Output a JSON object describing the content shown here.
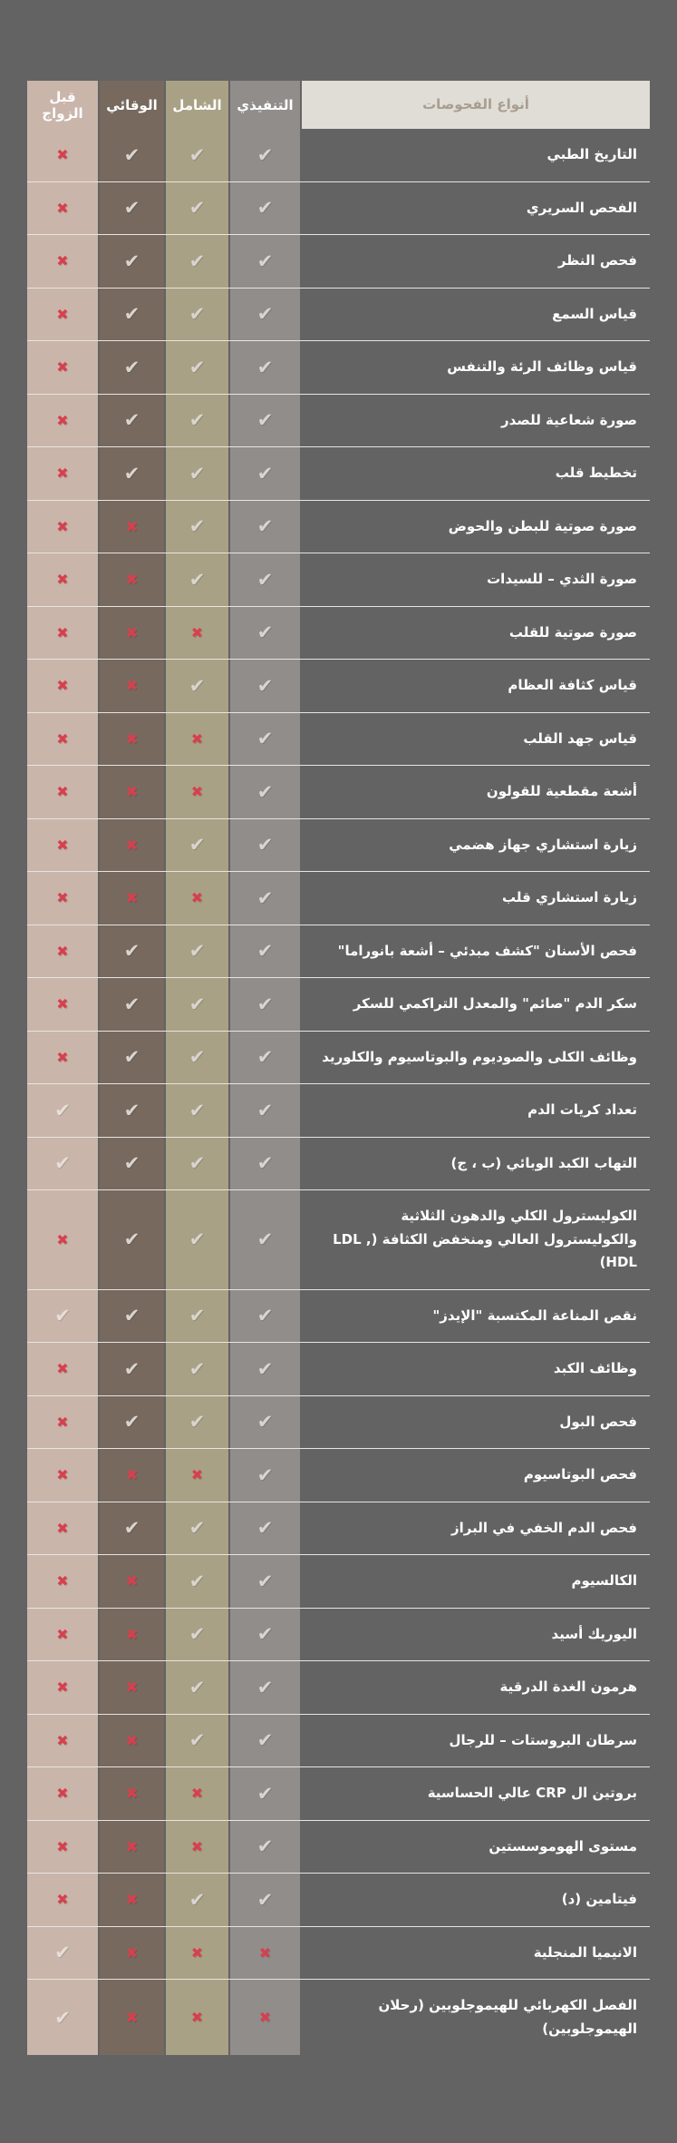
{
  "page": {
    "language": "ar",
    "direction": "rtl"
  },
  "chart_data": {
    "type": "table",
    "title": "أنواع الفحوصات",
    "tests_column_label": "أنواع الفحوصات",
    "columns": [
      {
        "key": "executive",
        "label": "التنفيذي",
        "color": "#908d8b"
      },
      {
        "key": "comprehensive",
        "label": "الشامل",
        "color": "#a9a185"
      },
      {
        "key": "preventive",
        "label": "الوقائي",
        "color": "#77695e"
      },
      {
        "key": "premarital",
        "label": "قبل الزواج",
        "color": "#c9b5aa"
      }
    ],
    "icons": {
      "check": "✔",
      "cross": "✖"
    },
    "colors": {
      "page_background": "#636363",
      "separator": "#e8e4e0",
      "tests_header_background": "#e0dcd6",
      "tests_header_text": "#a89e90",
      "row_text": "#ffffff",
      "check": "#d9d4cf",
      "check_on_premarital": "#e7dfd7",
      "cross": "#d6404e"
    },
    "rows": [
      {
        "name": "التاريخ الطبي",
        "marks": [
          "check",
          "check",
          "check",
          "cross"
        ]
      },
      {
        "name": "الفحص السريري",
        "marks": [
          "check",
          "check",
          "check",
          "cross"
        ]
      },
      {
        "name": "فحص النظر",
        "marks": [
          "check",
          "check",
          "check",
          "cross"
        ]
      },
      {
        "name": "قياس السمع",
        "marks": [
          "check",
          "check",
          "check",
          "cross"
        ]
      },
      {
        "name": "قياس وظائف الرئة والتنفس",
        "marks": [
          "check",
          "check",
          "check",
          "cross"
        ]
      },
      {
        "name": "صورة شعاعية للصدر",
        "marks": [
          "check",
          "check",
          "check",
          "cross"
        ]
      },
      {
        "name": "تخطيط قلب",
        "marks": [
          "check",
          "check",
          "check",
          "cross"
        ]
      },
      {
        "name": "صورة صوتية للبطن والحوض",
        "marks": [
          "check",
          "check",
          "cross",
          "cross"
        ]
      },
      {
        "name": "صورة الثدي – للسيدات",
        "marks": [
          "check",
          "check",
          "cross",
          "cross"
        ]
      },
      {
        "name": "صورة صوتية للقلب",
        "marks": [
          "check",
          "cross",
          "cross",
          "cross"
        ]
      },
      {
        "name": "قياس كثافة العظام",
        "marks": [
          "check",
          "check",
          "cross",
          "cross"
        ]
      },
      {
        "name": "قياس جهد القلب",
        "marks": [
          "check",
          "cross",
          "cross",
          "cross"
        ]
      },
      {
        "name": "أشعة مقطعية للقولون",
        "marks": [
          "check",
          "cross",
          "cross",
          "cross"
        ]
      },
      {
        "name": "زيارة استشاري جهاز هضمي",
        "marks": [
          "check",
          "check",
          "cross",
          "cross"
        ]
      },
      {
        "name": "زيارة استشاري قلب",
        "marks": [
          "check",
          "cross",
          "cross",
          "cross"
        ]
      },
      {
        "name": "فحص الأسنان \"كشف مبدئي – أشعة بانوراما\"",
        "marks": [
          "check",
          "check",
          "check",
          "cross"
        ]
      },
      {
        "name": "سكر الدم \"صائم\" والمعدل التراكمي للسكر",
        "marks": [
          "check",
          "check",
          "check",
          "cross"
        ]
      },
      {
        "name": "وظائف الكلى والصوديوم والبوتاسيوم والكلوريد",
        "marks": [
          "check",
          "check",
          "check",
          "cross"
        ]
      },
      {
        "name": "تعداد كريات الدم",
        "marks": [
          "check",
          "check",
          "check",
          "check"
        ]
      },
      {
        "name": "التهاب الكبد الوبائي (ب ، ج)",
        "marks": [
          "check",
          "check",
          "check",
          "check"
        ]
      },
      {
        "name": "الكوليسترول الكلي والدهون الثلاثية والكوليسترول العالي ومنخفض الكثافة (LDL , HDL)",
        "marks": [
          "check",
          "check",
          "check",
          "cross"
        ]
      },
      {
        "name": "نقص المناعة المكتسبة \"الإيدز\"",
        "marks": [
          "check",
          "check",
          "check",
          "check"
        ]
      },
      {
        "name": "وظائف الكبد",
        "marks": [
          "check",
          "check",
          "check",
          "cross"
        ]
      },
      {
        "name": "فحص البول",
        "marks": [
          "check",
          "check",
          "check",
          "cross"
        ]
      },
      {
        "name": "فحص البوتاسيوم",
        "marks": [
          "check",
          "cross",
          "cross",
          "cross"
        ]
      },
      {
        "name": "فحص الدم الخفي في البراز",
        "marks": [
          "check",
          "check",
          "check",
          "cross"
        ]
      },
      {
        "name": "الكالسيوم",
        "marks": [
          "check",
          "check",
          "cross",
          "cross"
        ]
      },
      {
        "name": "اليوريك أسيد",
        "marks": [
          "check",
          "check",
          "cross",
          "cross"
        ]
      },
      {
        "name": "هرمون الغدة الدرقية",
        "marks": [
          "check",
          "check",
          "cross",
          "cross"
        ]
      },
      {
        "name": "سرطان البروستات – للرجال",
        "marks": [
          "check",
          "check",
          "cross",
          "cross"
        ]
      },
      {
        "name": "بروتين ال CRP عالي الحساسية",
        "marks": [
          "check",
          "cross",
          "cross",
          "cross"
        ]
      },
      {
        "name": "مستوى الهوموسستين",
        "marks": [
          "check",
          "cross",
          "cross",
          "cross"
        ]
      },
      {
        "name": "فيتامين (د)",
        "marks": [
          "check",
          "check",
          "cross",
          "cross"
        ]
      },
      {
        "name": "الانيميا المنجلية",
        "marks": [
          "cross",
          "cross",
          "cross",
          "check"
        ]
      },
      {
        "name": "الفصل الكهربائي للهيموجلوبين (رحلان الهيموجلوبين)",
        "marks": [
          "cross",
          "cross",
          "cross",
          "check"
        ]
      }
    ]
  }
}
